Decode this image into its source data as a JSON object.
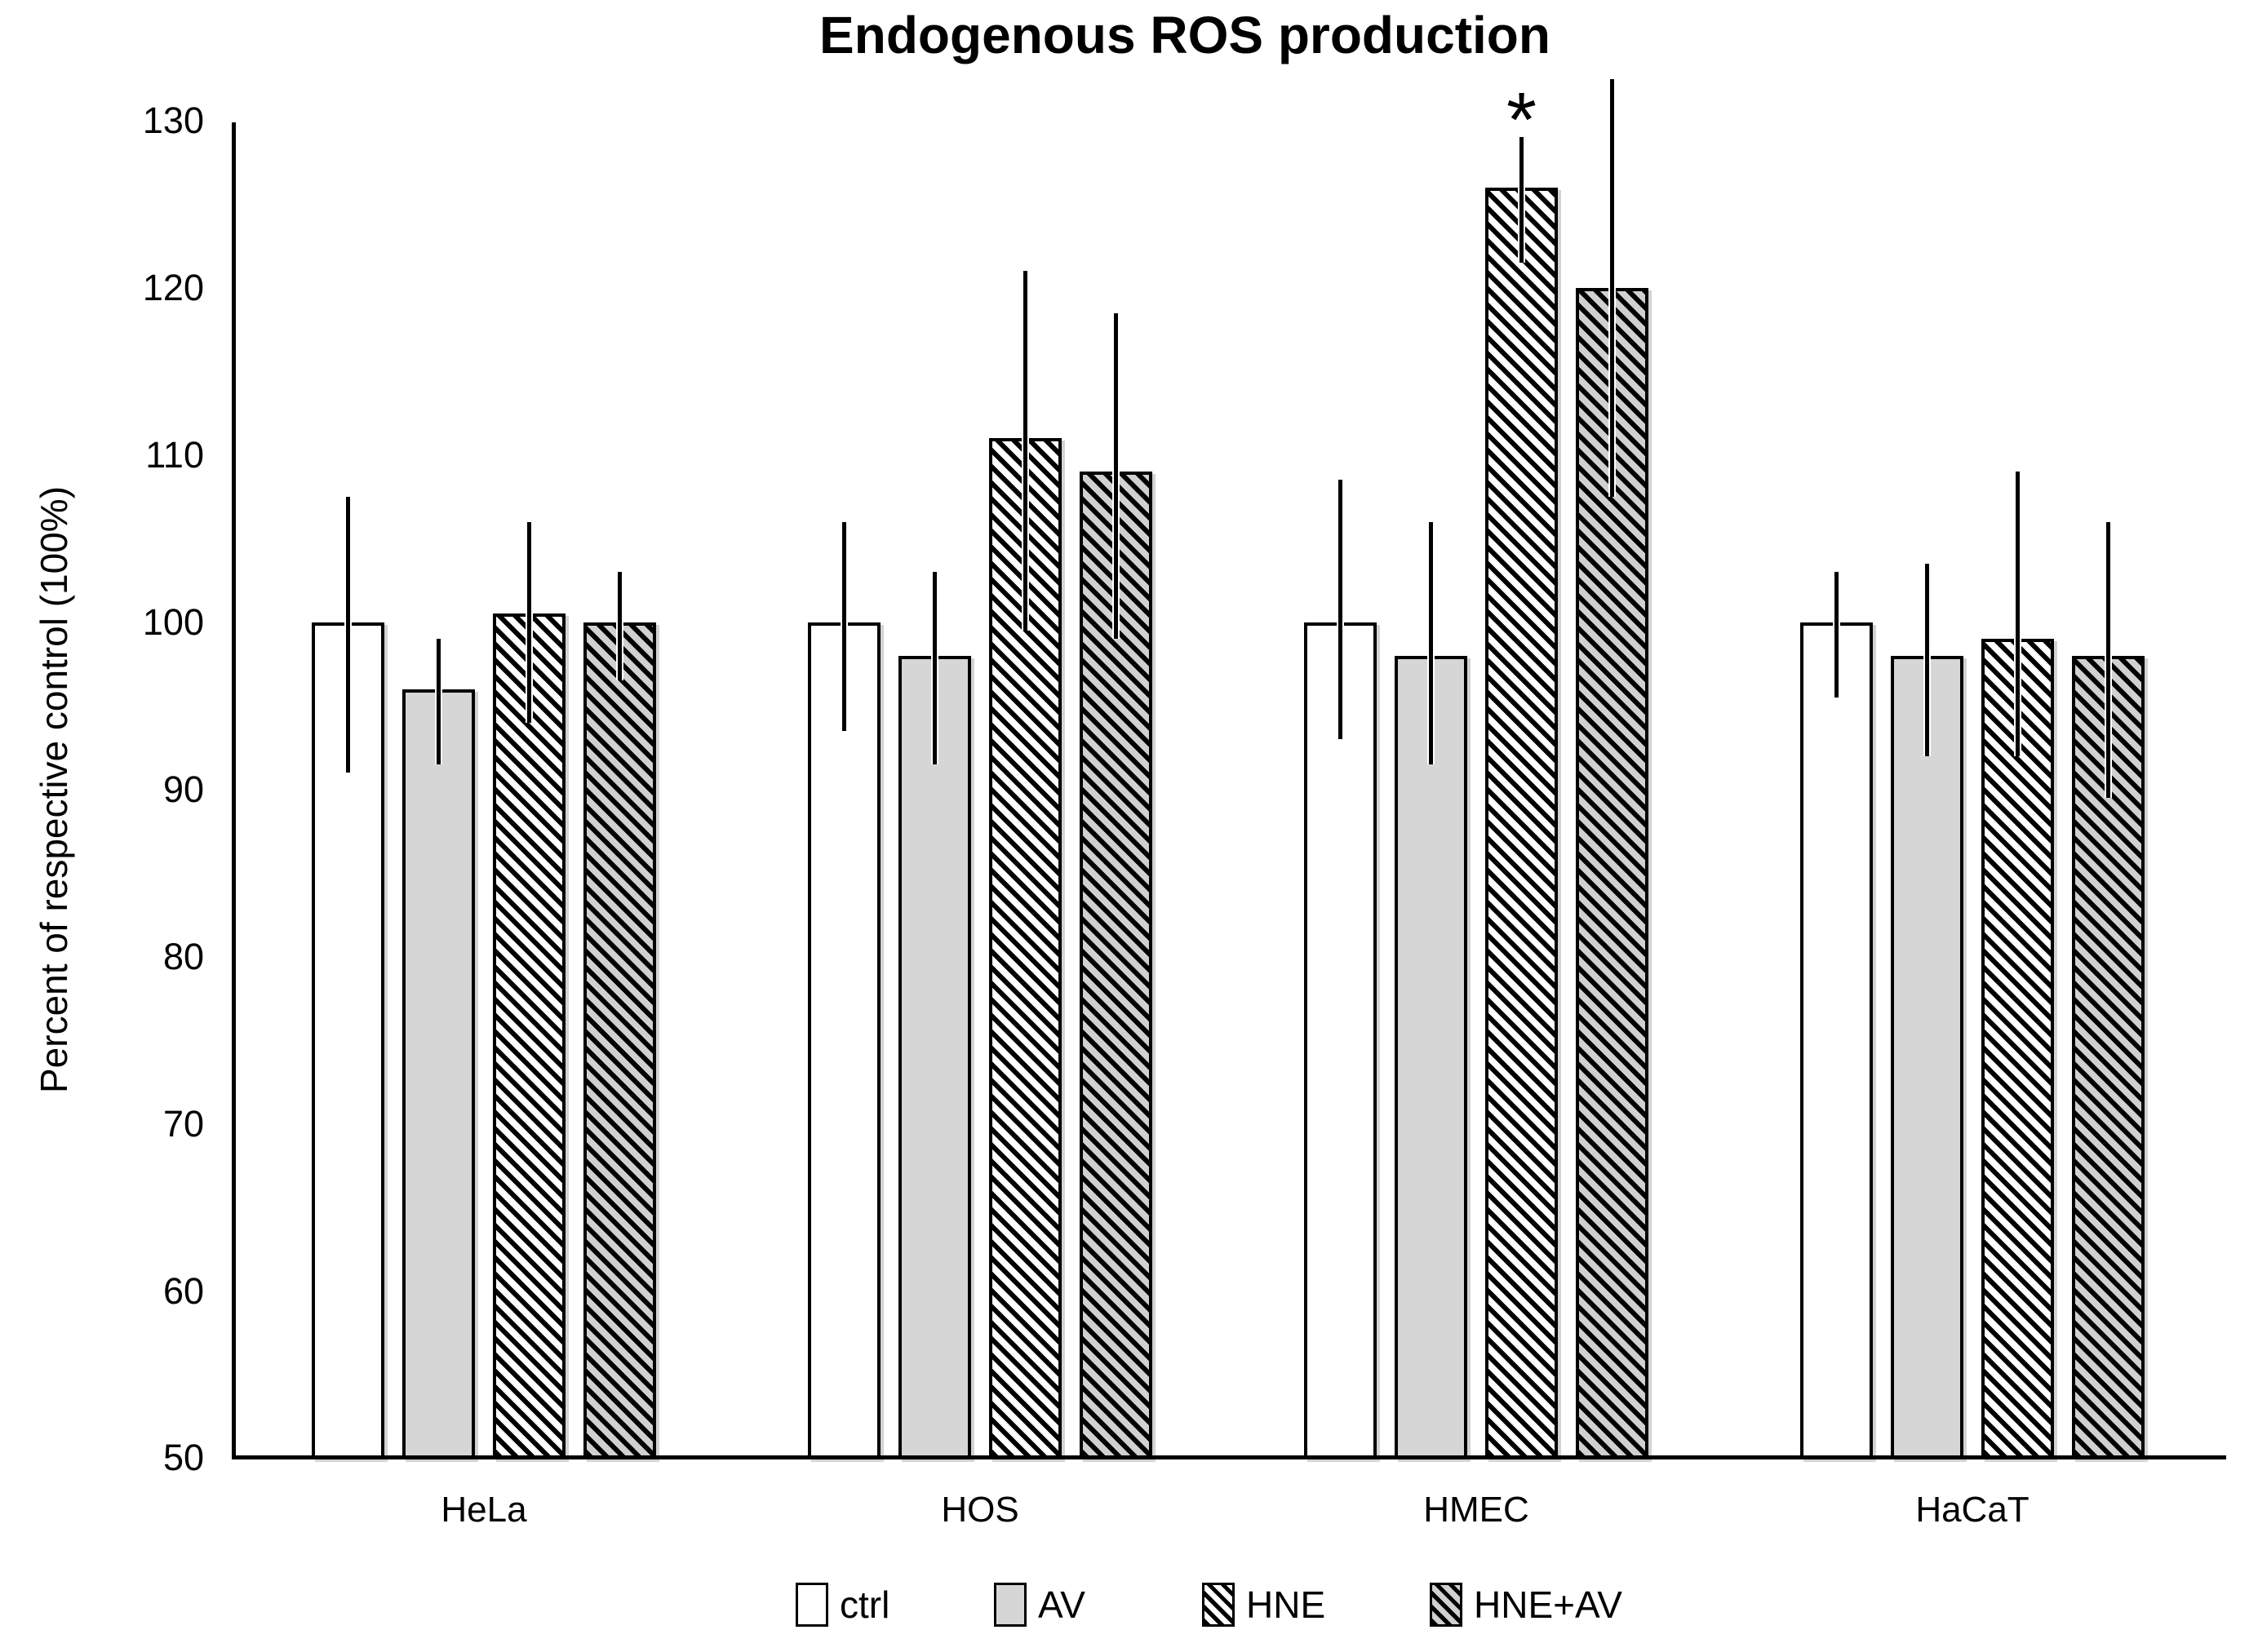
{
  "title": "Endogenous ROS production",
  "y_axis": {
    "label": "Percent of respective control (100%)",
    "ticks": [
      130,
      120,
      110,
      100,
      90,
      80,
      70,
      60,
      50
    ]
  },
  "colors": {
    "background": "#ffffff",
    "bar_border": "#000000",
    "ctrl_fill": "#ffffff",
    "av_fill": "#d6d6d6",
    "hne_av_fill": "#d0d0d0",
    "hatch_stroke": "#000000",
    "error_bar": "#000000",
    "text": "#000000"
  },
  "chart_data": {
    "type": "bar",
    "title": "Endogenous ROS production",
    "xlabel": "",
    "ylabel": "Percent of respective control (100%)",
    "ylim": [
      50,
      130
    ],
    "ytick_step": 10,
    "grid": false,
    "legend_position": "bottom",
    "categories": [
      "HeLa",
      "HOS",
      "HMEC",
      "HaCaT"
    ],
    "series": [
      {
        "name": "ctrl",
        "style": "white",
        "values": [
          100,
          100,
          100,
          100
        ],
        "error_low": [
          91,
          93.5,
          93,
          95.5
        ],
        "error_high": [
          107.5,
          106,
          108.5,
          103
        ]
      },
      {
        "name": "AV",
        "style": "gray",
        "values": [
          96,
          98,
          98,
          98
        ],
        "error_low": [
          91.5,
          91.5,
          91.5,
          92
        ],
        "error_high": [
          99,
          103,
          106,
          103.5
        ]
      },
      {
        "name": "HNE",
        "style": "hatch-white",
        "values": [
          100.5,
          111,
          126,
          99
        ],
        "error_low": [
          94,
          99.5,
          121.5,
          92
        ],
        "error_high": [
          106,
          121,
          129,
          109
        ]
      },
      {
        "name": "HNE+AV",
        "style": "hatch-gray",
        "values": [
          100,
          109,
          120,
          98
        ],
        "error_low": [
          96.5,
          99,
          107.5,
          89.5
        ],
        "error_high": [
          103,
          118.5,
          132.5,
          106
        ]
      }
    ],
    "annotations": [
      {
        "text": "*",
        "category": "HMEC",
        "series": "HNE",
        "meaning": "statistically significant"
      }
    ]
  }
}
